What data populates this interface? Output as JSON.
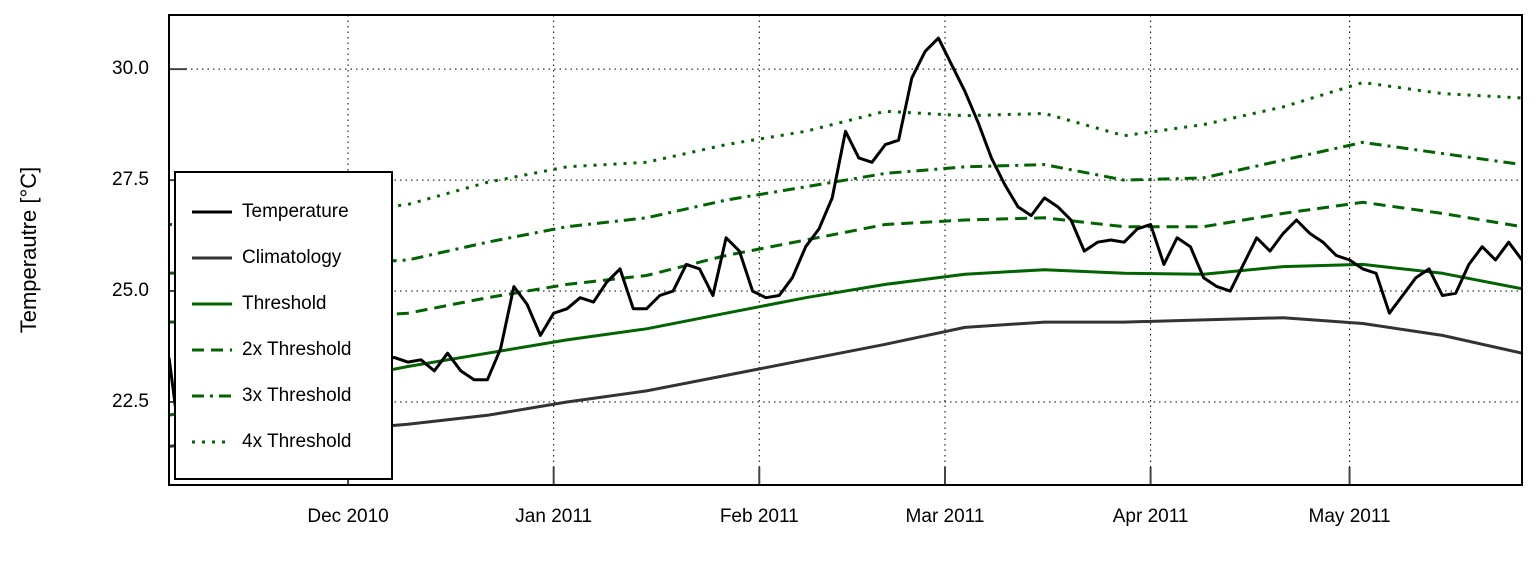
{
  "chart_data": {
    "type": "line",
    "ylabel": "Temperautre [°C]",
    "xlim": [
      0,
      204
    ],
    "xticks": [
      {
        "value": 27,
        "label": "Dec 2010"
      },
      {
        "value": 58,
        "label": "Jan 2011"
      },
      {
        "value": 89,
        "label": "Feb 2011"
      },
      {
        "value": 117,
        "label": "Mar 2011"
      },
      {
        "value": 148,
        "label": "Apr 2011"
      },
      {
        "value": 178,
        "label": "May 2011"
      }
    ],
    "ylim": [
      20.63,
      31.22
    ],
    "yticks": [
      {
        "value": 22.5,
        "label": "22.5"
      },
      {
        "value": 25,
        "label": "25.0"
      },
      {
        "value": 27.5,
        "label": "27.5"
      },
      {
        "value": 30,
        "label": "30.0"
      }
    ],
    "grid": true,
    "legend": "lower left",
    "fill_colors": [
      "#fec665",
      "#ff6900",
      "#990000",
      "#2d0000"
    ],
    "series": [
      {
        "name": "Temperature",
        "color": "#000000",
        "style": "solid",
        "x": [
          0,
          2,
          4,
          6,
          8,
          10,
          12,
          14,
          16,
          18,
          20,
          22,
          24,
          26,
          28,
          30,
          32,
          34,
          36,
          38,
          40,
          42,
          44,
          46,
          48,
          50,
          52,
          54,
          56,
          58,
          60,
          62,
          64,
          66,
          68,
          70,
          72,
          74,
          76,
          78,
          80,
          82,
          84,
          86,
          88,
          90,
          92,
          94,
          96,
          98,
          100,
          102,
          104,
          106,
          108,
          110,
          112,
          114,
          116,
          118,
          120,
          122,
          124,
          126,
          128,
          130,
          132,
          134,
          136,
          138,
          140,
          142,
          144,
          146,
          148,
          150,
          152,
          154,
          156,
          158,
          160,
          162,
          164,
          166,
          168,
          170,
          172,
          174,
          176,
          178,
          180,
          182,
          184,
          186,
          188,
          190,
          192,
          194,
          196,
          198,
          200,
          202,
          204
        ],
        "values": [
          23.5,
          21.2,
          21.8,
          22.4,
          22.9,
          23.2,
          23.3,
          23.5,
          23.6,
          23.7,
          23.5,
          23.7,
          23.6,
          23.5,
          23.7,
          23.6,
          23.5,
          23.5,
          23.4,
          23.45,
          23.2,
          23.6,
          23.2,
          23.0,
          23.0,
          23.7,
          25.1,
          24.7,
          24.0,
          24.5,
          24.6,
          24.85,
          24.75,
          25.2,
          25.5,
          24.6,
          24.6,
          24.9,
          25.0,
          25.6,
          25.5,
          24.9,
          26.2,
          25.9,
          25.0,
          24.85,
          24.9,
          25.3,
          26.0,
          26.4,
          27.1,
          28.6,
          28.0,
          27.9,
          28.3,
          28.4,
          29.8,
          30.4,
          30.7,
          30.1,
          29.5,
          28.8,
          28.0,
          27.4,
          26.9,
          26.7,
          27.1,
          26.9,
          26.6,
          25.9,
          26.1,
          26.15,
          26.1,
          26.4,
          26.5,
          25.6,
          26.2,
          26.0,
          25.3,
          25.1,
          25.0,
          25.6,
          26.2,
          25.9,
          26.3,
          26.6,
          26.3,
          26.1,
          25.8,
          25.7,
          25.5,
          25.4,
          24.5,
          24.9,
          25.3,
          25.5,
          24.9,
          24.95,
          25.6,
          26.0,
          25.7,
          26.1,
          25.7
        ]
      },
      {
        "name": "Climatology",
        "color": "#333333",
        "style": "solid",
        "x": [
          0,
          12,
          24,
          36,
          48,
          60,
          72,
          84,
          96,
          108,
          120,
          132,
          144,
          156,
          168,
          180,
          192,
          204
        ],
        "values": [
          21.5,
          21.7,
          21.85,
          22.0,
          22.2,
          22.5,
          22.75,
          23.1,
          23.45,
          23.8,
          24.18,
          24.3,
          24.3,
          24.35,
          24.4,
          24.27,
          24.0,
          23.6
        ]
      },
      {
        "name": "Threshold",
        "color": "#006400",
        "style": "solid",
        "x": [
          0,
          12,
          24,
          36,
          48,
          60,
          72,
          84,
          96,
          108,
          120,
          132,
          144,
          156,
          168,
          180,
          192,
          204
        ],
        "values": [
          22.2,
          22.6,
          22.95,
          23.3,
          23.6,
          23.9,
          24.15,
          24.5,
          24.85,
          25.15,
          25.38,
          25.48,
          25.4,
          25.38,
          25.55,
          25.6,
          25.4,
          25.05
        ]
      },
      {
        "name": "2x Threshold",
        "color": "#006400",
        "style": "dashed",
        "x": [
          0,
          12,
          24,
          36,
          48,
          60,
          72,
          84,
          96,
          108,
          120,
          132,
          144,
          156,
          168,
          180,
          192,
          204
        ],
        "values": [
          24.3,
          24.35,
          24.4,
          24.5,
          24.85,
          25.15,
          25.35,
          25.8,
          26.15,
          26.5,
          26.6,
          26.65,
          26.45,
          26.45,
          26.75,
          27.0,
          26.75,
          26.45
        ]
      },
      {
        "name": "3x Threshold",
        "color": "#006400",
        "style": "dashdot",
        "x": [
          0,
          12,
          24,
          36,
          48,
          60,
          72,
          84,
          96,
          108,
          120,
          132,
          144,
          156,
          168,
          180,
          192,
          204
        ],
        "values": [
          25.4,
          25.5,
          25.6,
          25.7,
          26.1,
          26.45,
          26.65,
          27.05,
          27.35,
          27.65,
          27.8,
          27.85,
          27.5,
          27.55,
          27.95,
          28.35,
          28.1,
          27.85
        ]
      },
      {
        "name": "4x Threshold",
        "color": "#006400",
        "style": "dotted",
        "x": [
          0,
          12,
          24,
          36,
          48,
          60,
          72,
          84,
          96,
          108,
          120,
          132,
          144,
          156,
          168,
          180,
          192,
          204
        ],
        "values": [
          26.5,
          26.6,
          26.75,
          26.95,
          27.45,
          27.8,
          27.9,
          28.3,
          28.6,
          29.05,
          28.95,
          29.0,
          28.5,
          28.75,
          29.15,
          29.7,
          29.45,
          29.35
        ]
      }
    ]
  }
}
